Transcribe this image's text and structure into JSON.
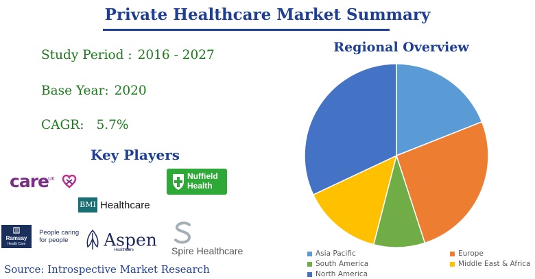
{
  "header": {
    "title": "Private Healthcare Market Summary"
  },
  "stats": {
    "study_period_label": "Study Period :",
    "study_period_value": "2016 - 2027",
    "base_year_label": "Base Year:",
    "base_year_value": "2020",
    "cagr_label": "CAGR:",
    "cagr_value": "5.7%"
  },
  "key_players": {
    "heading": "Key Players",
    "logos": {
      "care_uk": {
        "name": "care",
        "superscript": "UK",
        "icon": "heart-icon",
        "color": "#7a2e86"
      },
      "nuffield": {
        "line1": "Nuffield",
        "line2": "Health",
        "icon": "shield-cross-icon",
        "color": "#2ea836"
      },
      "bmi": {
        "mark": "BMI",
        "name": "Healthcare",
        "color": "#1a6e73"
      },
      "ramsay": {
        "name": "Ramsay",
        "sub": "Health Care",
        "tagline_1": "People caring",
        "tagline_2": "for people",
        "color": "#1b2f5b"
      },
      "aspen": {
        "name": "Aspen",
        "sub": "Healthcare",
        "icon": "aspen-leaf-icon",
        "color": "#1f2a5c"
      },
      "spire": {
        "name": "Spire Healthcare",
        "icon": "spire-s-icon",
        "color": "#a3b0b8"
      }
    }
  },
  "source": {
    "text": "Source: Introspective Market Research"
  },
  "chart_data": {
    "type": "pie",
    "title": "Regional Overview",
    "categories": [
      "Asia Pacific",
      "Europe",
      "South America",
      "Middle East & Africa",
      "North America"
    ],
    "values": [
      19,
      26,
      9,
      14,
      32
    ],
    "colors": [
      "#5b9bd5",
      "#ed7d31",
      "#70ad47",
      "#ffc000",
      "#4472c4"
    ],
    "legend_position": "bottom"
  }
}
